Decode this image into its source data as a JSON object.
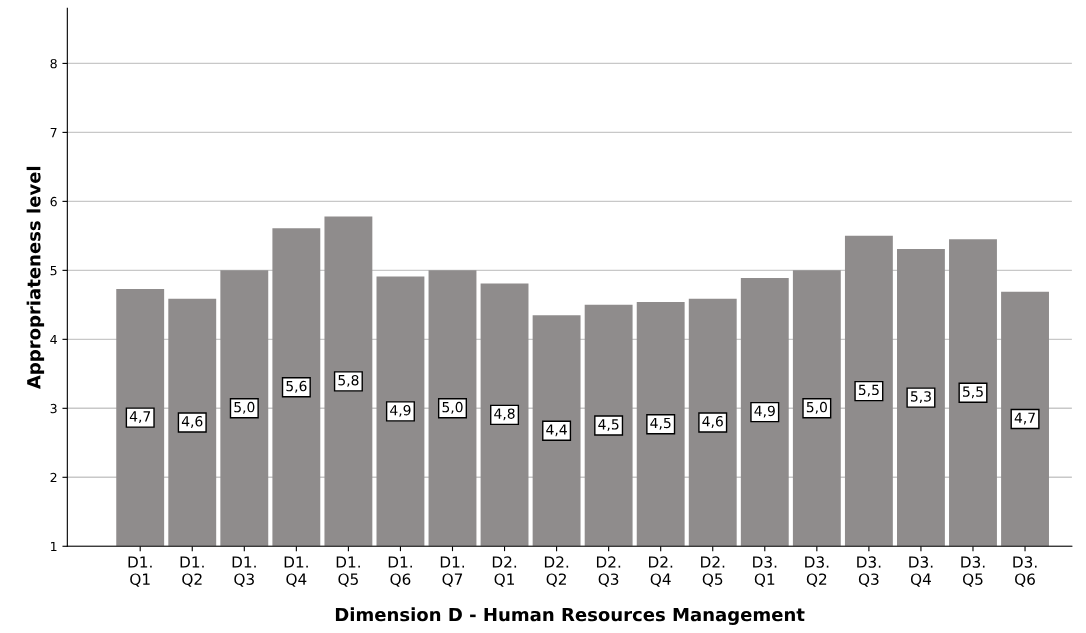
{
  "chart_data": {
    "type": "bar",
    "xlabel": "Dimension D - Human Resources Management",
    "ylabel": "Appropriateness level",
    "categories": [
      "D1.\nQ1",
      "D1.\nQ2",
      "D1.\nQ3",
      "D1.\nQ4",
      "D1.\nQ5",
      "D1.\nQ6",
      "D1.\nQ7",
      "D2.\nQ1",
      "D2.\nQ2",
      "D2.\nQ3",
      "D2.\nQ4",
      "D2.\nQ5",
      "D3.\nQ1",
      "D3.\nQ2",
      "D3.\nQ3",
      "D3.\nQ4",
      "D3.\nQ5",
      "D3.\nQ6"
    ],
    "values": [
      4.73,
      4.59,
      5.0,
      5.61,
      5.78,
      4.91,
      5.0,
      4.81,
      4.35,
      4.5,
      4.54,
      4.59,
      4.89,
      5.0,
      5.5,
      5.31,
      5.45,
      4.69
    ],
    "value_labels": [
      "4,7",
      "4,6",
      "5,0",
      "5,6",
      "5,8",
      "4,9",
      "5,0",
      "4,8",
      "4,4",
      "4,5",
      "4,5",
      "4,6",
      "4,9",
      "5,0",
      "5,5",
      "5,3",
      "5,5",
      "4,7"
    ],
    "color": "#8f8c8c",
    "ylim": [
      1,
      8.8
    ],
    "yticks": [
      1,
      2,
      3,
      4,
      5,
      6,
      7,
      8
    ],
    "grid": "y",
    "legend": false
  }
}
